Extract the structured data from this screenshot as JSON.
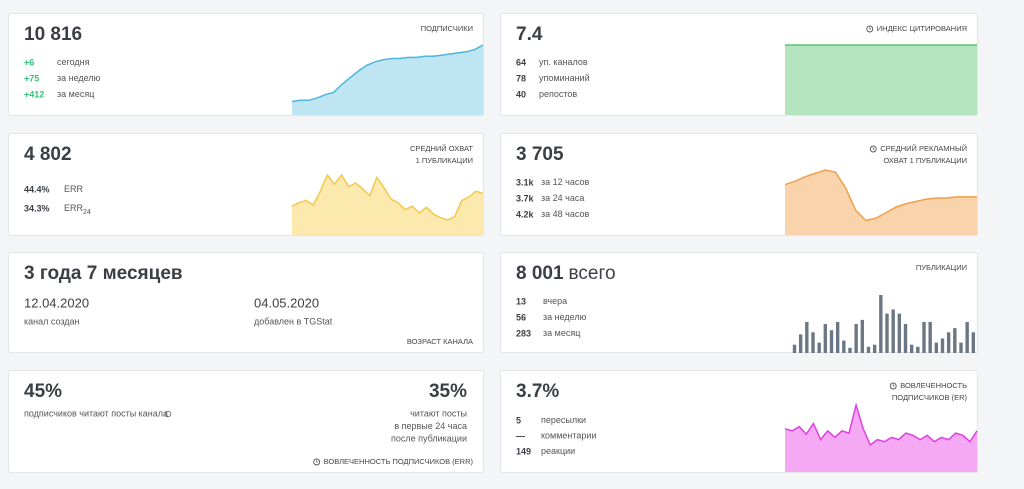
{
  "cards": [
    {
      "value": "10 816",
      "title": [
        "ПОДПИСЧИКИ"
      ],
      "stats": [
        [
          "+6",
          "сегодня"
        ],
        [
          "+75",
          "за неделю"
        ],
        [
          "+412",
          "за месяц"
        ]
      ],
      "spark": {
        "type": "area",
        "color": "#4db6dc",
        "fill": "#bfe5f2",
        "values": [
          12,
          13,
          13,
          15,
          18,
          20,
          27,
          33,
          39,
          44,
          47,
          49,
          50,
          50,
          51,
          51,
          52,
          52,
          53,
          54,
          55,
          56,
          58,
          62
        ]
      }
    },
    {
      "value": "7.4",
      "title": [
        "ИНДЕКС ЦИТИРОВАНИЯ"
      ],
      "stats": [
        [
          "64",
          "уп. каналов"
        ],
        [
          "78",
          "упоминаний"
        ],
        [
          "40",
          "репостов"
        ]
      ],
      "spark": {
        "type": "area",
        "color": "#5cc476",
        "fill": "#b4e5bf",
        "values": [
          65,
          65,
          65,
          65,
          65,
          65,
          65,
          65,
          65,
          65
        ]
      }
    },
    {
      "value": "4 802",
      "title": [
        "СРЕДНИЙ ОХВАТ",
        "1 ПУБЛИКАЦИИ"
      ],
      "stats": [
        [
          "44.4%",
          "ERR"
        ],
        [
          "34.3%",
          "ERR",
          "24"
        ]
      ],
      "spark": {
        "type": "area",
        "color": "#f2c94c",
        "fill": "#fbe9ad",
        "values": [
          25,
          28,
          30,
          26,
          38,
          52,
          44,
          52,
          42,
          45,
          40,
          34,
          50,
          41,
          31,
          28,
          22,
          25,
          19,
          24,
          18,
          15,
          13,
          16,
          30,
          33,
          38,
          36
        ]
      }
    },
    {
      "value": "3 705",
      "title": [
        "СРЕДНИЙ РЕКЛАМНЫЙ",
        "ОХВАТ 1 ПУБЛИКАЦИИ"
      ],
      "stats": [
        [
          "3.1k",
          "за 12 часов"
        ],
        [
          "3.7k",
          "за 24 часа"
        ],
        [
          "4.2k",
          "за 48 часов"
        ]
      ],
      "spark": {
        "type": "area",
        "color": "#f0a04b",
        "fill": "#f8d3ab",
        "values": [
          45,
          48,
          52,
          55,
          58,
          56,
          42,
          22,
          13,
          15,
          20,
          25,
          28,
          30,
          32,
          33,
          33,
          34,
          34,
          34
        ]
      }
    },
    {
      "value": "3 года 7 месяцев",
      "dates": [
        [
          "12.04.2020",
          "канал создан"
        ],
        [
          "04.05.2020",
          "добавлен в TGStat"
        ]
      ],
      "footer": "ВОЗРАСТ КАНАЛА"
    },
    {
      "value": "8 001",
      "value_suffix": "всего",
      "title": [
        "ПУБЛИКАЦИИ"
      ],
      "stats": [
        [
          "13",
          "вчера"
        ],
        [
          "56",
          "за неделю"
        ],
        [
          "283",
          "за месяц"
        ]
      ],
      "spark": {
        "type": "bar",
        "color": "#6b7785",
        "values": [
          8,
          18,
          30,
          20,
          10,
          28,
          22,
          30,
          12,
          5,
          28,
          32,
          6,
          8,
          56,
          38,
          42,
          38,
          28,
          8,
          6,
          30,
          30,
          10,
          14,
          20,
          24,
          10,
          30,
          20
        ]
      }
    },
    {
      "value": "45%",
      "caption": "подписчиков читают посты канала",
      "value2": "35%",
      "caption2": [
        "читают посты",
        "в первые 24 часа",
        "после публикации"
      ],
      "footer": "ВОВЛЕЧЕННОСТЬ ПОДПИСЧИКОВ (ERR)"
    },
    {
      "value": "3.7%",
      "title": [
        "ВОВЛЕЧЕННОСТЬ",
        "ПОДПИСЧИКОВ (ER)"
      ],
      "stats": [
        [
          "5",
          "пересылки"
        ],
        [
          "—",
          "комментарии"
        ],
        [
          "149",
          "реакции"
        ]
      ],
      "spark": {
        "type": "area",
        "color": "#e040e0",
        "fill": "#f5a8f3",
        "values": [
          40,
          38,
          42,
          35,
          45,
          30,
          38,
          32,
          38,
          36,
          62,
          40,
          25,
          30,
          28,
          32,
          30,
          36,
          34,
          30,
          34,
          28,
          32,
          30,
          36,
          34,
          28,
          38
        ]
      }
    }
  ]
}
